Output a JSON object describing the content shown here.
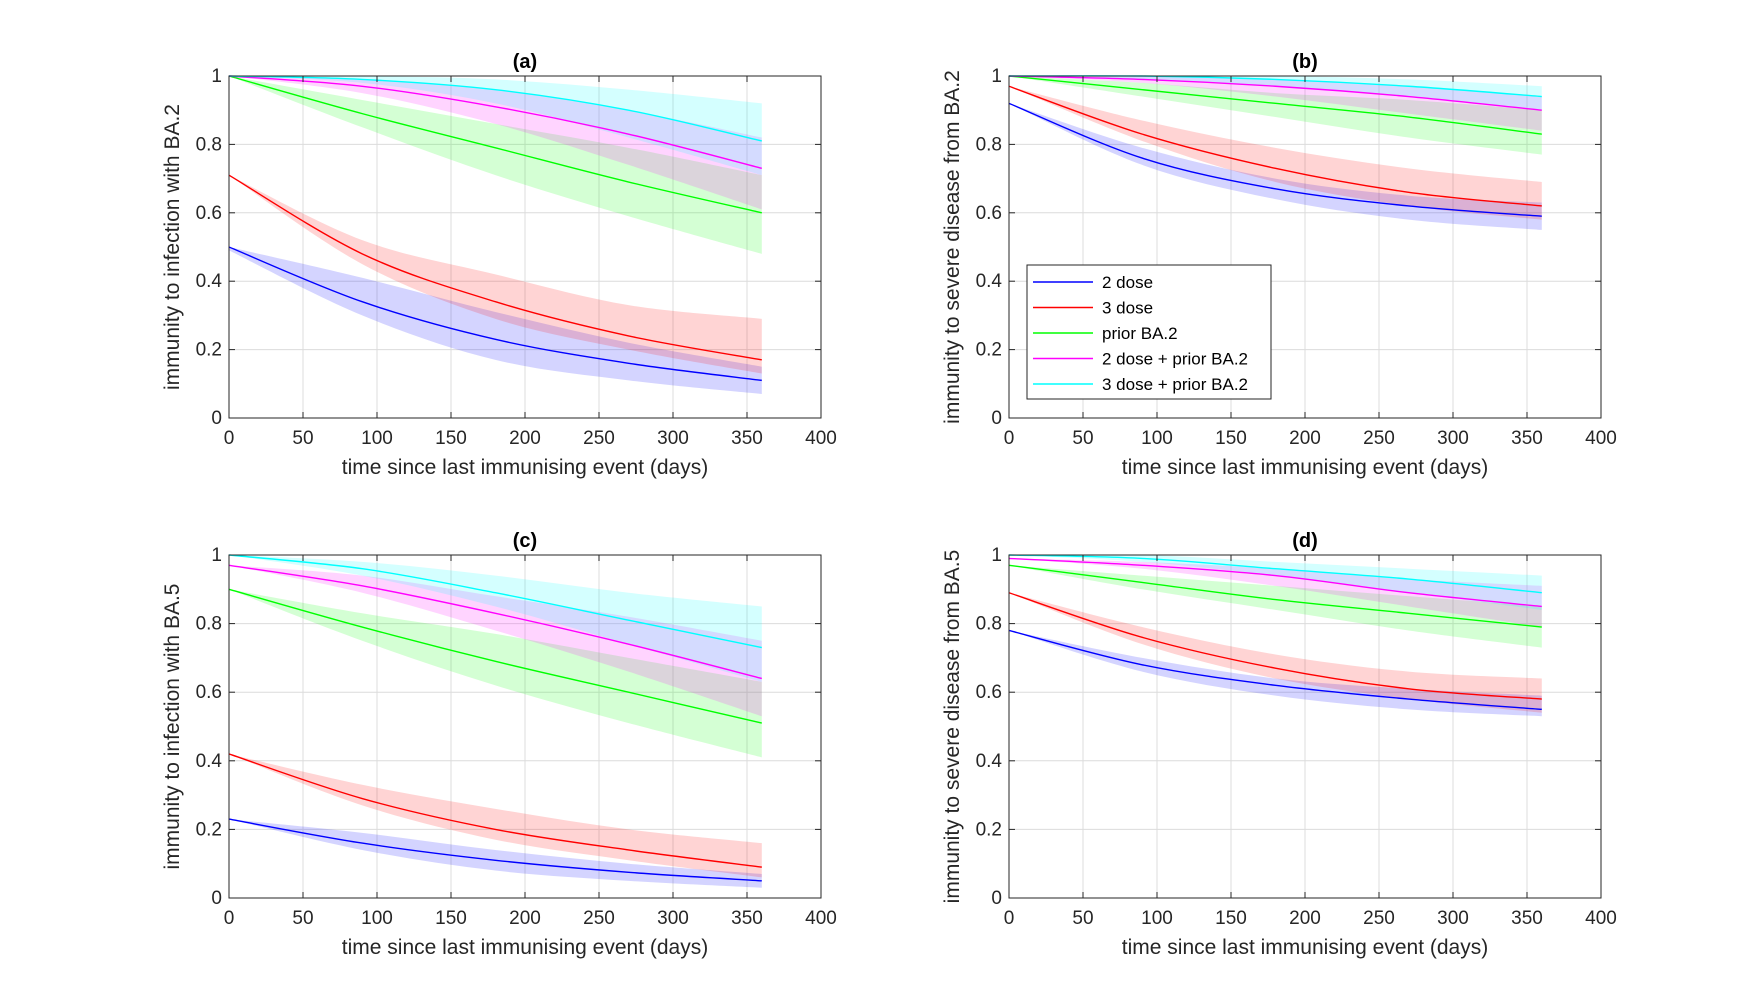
{
  "colors": {
    "2 dose": "#0000ff",
    "3 dose": "#ff0000",
    "prior BA.2": "#00ff00",
    "2 dose + prior BA.2": "#ff00ff",
    "3 dose + prior BA.2": "#00ffff"
  },
  "legend": {
    "items": [
      "2 dose",
      "3 dose",
      "prior BA.2",
      "2 dose + prior BA.2",
      "3 dose + prior BA.2"
    ]
  },
  "chart_data": [
    {
      "id": "a",
      "type": "line",
      "title": "(a)",
      "xlabel": "time since last immunising event (days)",
      "ylabel": "immunity to infection with BA.2",
      "xlim": [
        0,
        400
      ],
      "ylim": [
        0,
        1
      ],
      "xticks": [
        "0",
        "50",
        "100",
        "150",
        "200",
        "250",
        "300",
        "350",
        "400"
      ],
      "yticks": [
        "0",
        "0.2",
        "0.4",
        "0.6",
        "0.8",
        "1"
      ],
      "grid": true,
      "x": [
        0,
        90,
        180,
        270,
        360
      ],
      "series": [
        {
          "name": "2 dose",
          "values": [
            0.5,
            0.34,
            0.23,
            0.16,
            0.11
          ],
          "lower": [
            0.49,
            0.3,
            0.17,
            0.11,
            0.07
          ],
          "upper": [
            0.5,
            0.41,
            0.31,
            0.22,
            0.15
          ]
        },
        {
          "name": "3 dose",
          "values": [
            0.71,
            0.48,
            0.34,
            0.24,
            0.17
          ],
          "lower": [
            0.71,
            0.45,
            0.29,
            0.2,
            0.13
          ],
          "upper": [
            0.71,
            0.52,
            0.42,
            0.33,
            0.29
          ]
        },
        {
          "name": "prior BA.2",
          "values": [
            1.0,
            0.89,
            0.79,
            0.69,
            0.6
          ],
          "lower": [
            1.0,
            0.85,
            0.71,
            0.59,
            0.48
          ],
          "upper": [
            1.0,
            0.93,
            0.86,
            0.79,
            0.71
          ]
        },
        {
          "name": "2 dose + prior BA.2",
          "values": [
            1.0,
            0.97,
            0.91,
            0.83,
            0.73
          ],
          "lower": [
            1.0,
            0.95,
            0.86,
            0.74,
            0.61
          ],
          "upper": [
            1.0,
            0.99,
            0.96,
            0.9,
            0.82
          ]
        },
        {
          "name": "3 dose + prior BA.2",
          "values": [
            1.0,
            0.99,
            0.96,
            0.9,
            0.81
          ],
          "lower": [
            1.0,
            0.98,
            0.92,
            0.82,
            0.71
          ],
          "upper": [
            1.0,
            1.0,
            0.99,
            0.96,
            0.92
          ]
        }
      ]
    },
    {
      "id": "b",
      "type": "line",
      "title": "(b)",
      "xlabel": "time since last immunising event (days)",
      "ylabel": "immunity to severe disease from BA.2",
      "xlim": [
        0,
        400
      ],
      "ylim": [
        0,
        1
      ],
      "xticks": [
        "0",
        "50",
        "100",
        "150",
        "200",
        "250",
        "300",
        "350",
        "400"
      ],
      "yticks": [
        "0",
        "0.2",
        "0.4",
        "0.6",
        "0.8",
        "1"
      ],
      "grid": true,
      "legend_position": "middle-left",
      "x": [
        0,
        90,
        180,
        270,
        360
      ],
      "series": [
        {
          "name": "2 dose",
          "values": [
            0.92,
            0.76,
            0.67,
            0.62,
            0.59
          ],
          "lower": [
            0.92,
            0.74,
            0.64,
            0.58,
            0.55
          ],
          "upper": [
            0.92,
            0.79,
            0.7,
            0.65,
            0.63
          ]
        },
        {
          "name": "3 dose",
          "values": [
            0.97,
            0.83,
            0.73,
            0.66,
            0.62
          ],
          "lower": [
            0.97,
            0.81,
            0.69,
            0.62,
            0.58
          ],
          "upper": [
            0.97,
            0.87,
            0.79,
            0.73,
            0.69
          ]
        },
        {
          "name": "prior BA.2",
          "values": [
            1.0,
            0.96,
            0.92,
            0.88,
            0.83
          ],
          "lower": [
            1.0,
            0.94,
            0.88,
            0.82,
            0.77
          ],
          "upper": [
            1.0,
            0.98,
            0.95,
            0.93,
            0.9
          ]
        },
        {
          "name": "2 dose + prior BA.2",
          "values": [
            1.0,
            0.99,
            0.97,
            0.94,
            0.9
          ],
          "lower": [
            1.0,
            0.98,
            0.94,
            0.89,
            0.84
          ],
          "upper": [
            1.0,
            1.0,
            0.99,
            0.97,
            0.94
          ]
        },
        {
          "name": "3 dose + prior BA.2",
          "values": [
            1.0,
            1.0,
            0.99,
            0.97,
            0.94
          ],
          "lower": [
            1.0,
            0.99,
            0.97,
            0.94,
            0.9
          ],
          "upper": [
            1.0,
            1.0,
            1.0,
            0.99,
            0.97
          ]
        }
      ]
    },
    {
      "id": "c",
      "type": "line",
      "title": "(c)",
      "xlabel": "time since last immunising event (days)",
      "ylabel": "immunity to infection with BA.5",
      "xlim": [
        0,
        400
      ],
      "ylim": [
        0,
        1
      ],
      "xticks": [
        "0",
        "50",
        "100",
        "150",
        "200",
        "250",
        "300",
        "350",
        "400"
      ],
      "yticks": [
        "0",
        "0.2",
        "0.4",
        "0.6",
        "0.8",
        "1"
      ],
      "grid": true,
      "x": [
        0,
        90,
        180,
        270,
        360
      ],
      "series": [
        {
          "name": "2 dose",
          "values": [
            0.23,
            0.16,
            0.11,
            0.075,
            0.05
          ],
          "lower": [
            0.23,
            0.14,
            0.08,
            0.05,
            0.03
          ],
          "upper": [
            0.23,
            0.19,
            0.14,
            0.1,
            0.07
          ]
        },
        {
          "name": "3 dose",
          "values": [
            0.42,
            0.29,
            0.2,
            0.14,
            0.09
          ],
          "lower": [
            0.42,
            0.27,
            0.17,
            0.11,
            0.06
          ],
          "upper": [
            0.42,
            0.33,
            0.26,
            0.2,
            0.16
          ]
        },
        {
          "name": "prior BA.2",
          "values": [
            0.9,
            0.79,
            0.69,
            0.6,
            0.51
          ],
          "lower": [
            0.9,
            0.75,
            0.62,
            0.51,
            0.41
          ],
          "upper": [
            0.9,
            0.83,
            0.77,
            0.7,
            0.63
          ]
        },
        {
          "name": "2 dose + prior BA.2",
          "values": [
            0.97,
            0.91,
            0.83,
            0.74,
            0.64
          ],
          "lower": [
            0.97,
            0.89,
            0.78,
            0.66,
            0.53
          ],
          "upper": [
            0.97,
            0.94,
            0.88,
            0.82,
            0.75
          ]
        },
        {
          "name": "3 dose + prior BA.2",
          "values": [
            1.0,
            0.96,
            0.89,
            0.81,
            0.73
          ],
          "lower": [
            1.0,
            0.94,
            0.85,
            0.74,
            0.63
          ],
          "upper": [
            1.0,
            0.98,
            0.94,
            0.89,
            0.85
          ]
        }
      ]
    },
    {
      "id": "d",
      "type": "line",
      "title": "(d)",
      "xlabel": "time since last immunising event (days)",
      "ylabel": "immunity to severe disease from BA.5",
      "xlim": [
        0,
        400
      ],
      "ylim": [
        0,
        1
      ],
      "xticks": [
        "0",
        "50",
        "100",
        "150",
        "200",
        "250",
        "300",
        "350",
        "400"
      ],
      "yticks": [
        "0",
        "0.2",
        "0.4",
        "0.6",
        "0.8",
        "1"
      ],
      "grid": true,
      "x": [
        0,
        90,
        180,
        270,
        360
      ],
      "series": [
        {
          "name": "2 dose",
          "values": [
            0.78,
            0.68,
            0.62,
            0.58,
            0.55
          ],
          "lower": [
            0.78,
            0.66,
            0.59,
            0.55,
            0.53
          ],
          "upper": [
            0.78,
            0.7,
            0.64,
            0.61,
            0.59
          ]
        },
        {
          "name": "3 dose",
          "values": [
            0.89,
            0.76,
            0.67,
            0.61,
            0.58
          ],
          "lower": [
            0.89,
            0.74,
            0.64,
            0.58,
            0.54
          ],
          "upper": [
            0.89,
            0.79,
            0.71,
            0.66,
            0.64
          ]
        },
        {
          "name": "prior BA.2",
          "values": [
            0.97,
            0.92,
            0.87,
            0.83,
            0.79
          ],
          "lower": [
            0.97,
            0.9,
            0.84,
            0.78,
            0.73
          ],
          "upper": [
            0.97,
            0.94,
            0.91,
            0.88,
            0.85
          ]
        },
        {
          "name": "2 dose + prior BA.2",
          "values": [
            0.99,
            0.97,
            0.94,
            0.89,
            0.85
          ],
          "lower": [
            0.99,
            0.96,
            0.91,
            0.85,
            0.79
          ],
          "upper": [
            0.99,
            0.98,
            0.96,
            0.93,
            0.91
          ]
        },
        {
          "name": "3 dose + prior BA.2",
          "values": [
            1.0,
            0.99,
            0.96,
            0.93,
            0.89
          ],
          "lower": [
            1.0,
            0.98,
            0.94,
            0.89,
            0.84
          ],
          "upper": [
            1.0,
            1.0,
            0.98,
            0.96,
            0.94
          ]
        }
      ]
    }
  ]
}
